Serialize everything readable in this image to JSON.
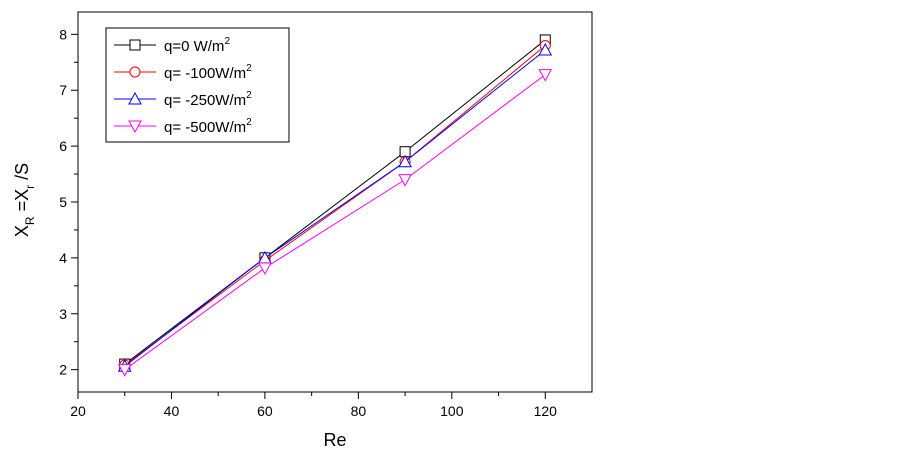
{
  "chart_data": {
    "type": "line",
    "xlabel": "Re",
    "ylabel": {
      "main": "X",
      "sub1": "R",
      "mid": " =X",
      "sub2": "r",
      "tail": " /S"
    },
    "xlim": [
      20,
      130
    ],
    "ylim": [
      1.6,
      8.4
    ],
    "x_ticks": [
      20,
      40,
      60,
      80,
      100,
      120
    ],
    "y_ticks": [
      2,
      3,
      4,
      5,
      6,
      7,
      8
    ],
    "grid": false,
    "legend_position": "top-left",
    "x": [
      30,
      60,
      90,
      120
    ],
    "series": [
      {
        "name": "q=0 W/m",
        "name_sup": "2",
        "color": "#000000",
        "marker": "square",
        "values": [
          2.1,
          4.0,
          5.9,
          7.9
        ]
      },
      {
        "name": "q= -100W/m",
        "name_sup": "2",
        "color": "#ff0000",
        "marker": "circle",
        "values": [
          2.08,
          3.95,
          5.72,
          7.8
        ]
      },
      {
        "name": "q= -250W/m",
        "name_sup": "2",
        "color": "#0000ff",
        "marker": "triangle-up",
        "values": [
          2.06,
          4.0,
          5.72,
          7.72
        ]
      },
      {
        "name": "q= -500W/m",
        "name_sup": "2",
        "color": "#ff00ff",
        "marker": "triangle-down",
        "values": [
          2.0,
          3.82,
          5.4,
          7.28
        ]
      }
    ]
  }
}
